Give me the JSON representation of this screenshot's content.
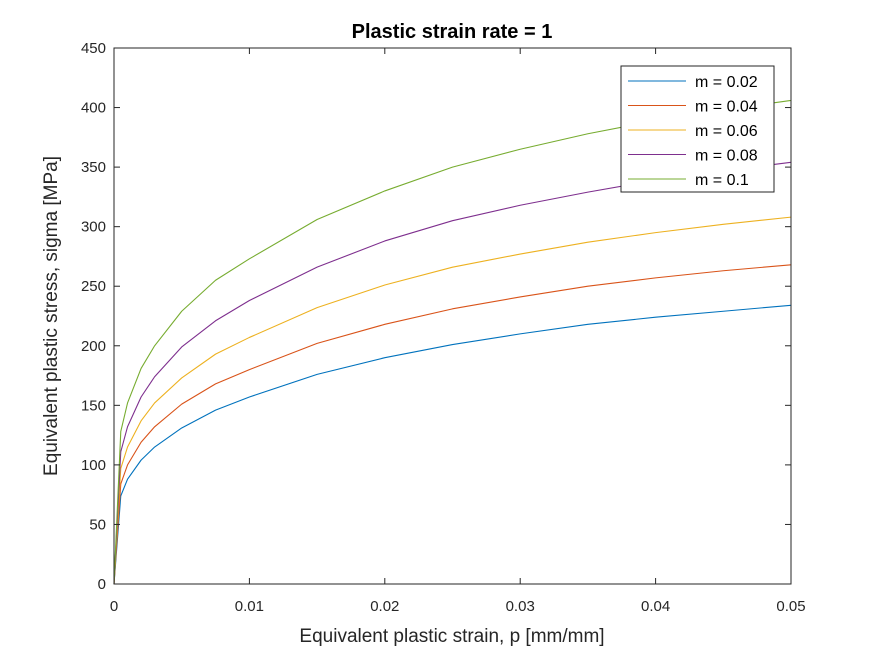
{
  "chart_data": {
    "type": "line",
    "title": "Plastic strain rate = 1",
    "xlabel": "Equivalent plastic strain, p [mm/mm]",
    "ylabel": "Equivalent plastic stress, sigma [MPa]",
    "xlim": [
      0,
      0.05
    ],
    "ylim": [
      0,
      450
    ],
    "xticks": [
      0,
      0.01,
      0.02,
      0.03,
      0.04,
      0.05
    ],
    "xtick_labels": [
      "0",
      "0.01",
      "0.02",
      "0.03",
      "0.04",
      "0.05"
    ],
    "yticks": [
      0,
      50,
      100,
      150,
      200,
      250,
      300,
      350,
      400,
      450
    ],
    "ytick_labels": [
      "0",
      "50",
      "100",
      "150",
      "200",
      "250",
      "300",
      "350",
      "400",
      "450"
    ],
    "grid": false,
    "legend_position": "top-right",
    "x": [
      0,
      0.0005,
      0.001,
      0.002,
      0.003,
      0.005,
      0.0075,
      0.01,
      0.015,
      0.02,
      0.025,
      0.03,
      0.035,
      0.04,
      0.045,
      0.05
    ],
    "series": [
      {
        "name": "m = 0.02",
        "color": "#0072BD",
        "values": [
          0,
          74,
          88,
          104,
          115,
          131,
          146,
          157,
          176,
          190,
          201,
          210,
          218,
          224,
          229,
          234
        ]
      },
      {
        "name": "m = 0.04",
        "color": "#D95319",
        "values": [
          0,
          84,
          100,
          119,
          132,
          151,
          168,
          180,
          202,
          218,
          231,
          241,
          250,
          257,
          263,
          268
        ]
      },
      {
        "name": "m = 0.06",
        "color": "#EDB120",
        "values": [
          0,
          97,
          115,
          137,
          152,
          173,
          193,
          207,
          232,
          251,
          266,
          277,
          287,
          295,
          302,
          308
        ]
      },
      {
        "name": "m = 0.08",
        "color": "#7E2F8E",
        "values": [
          0,
          111,
          132,
          157,
          174,
          199,
          221,
          238,
          266,
          288,
          305,
          318,
          329,
          339,
          347,
          354
        ]
      },
      {
        "name": "m = 0.1",
        "color": "#77AC30",
        "values": [
          0,
          128,
          152,
          181,
          200,
          229,
          255,
          273,
          306,
          330,
          350,
          365,
          378,
          389,
          398,
          406
        ]
      }
    ]
  }
}
